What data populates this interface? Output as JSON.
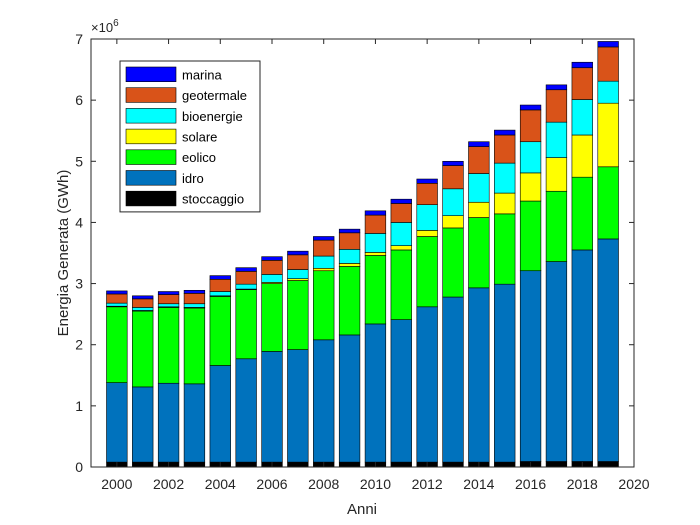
{
  "chart_data": {
    "type": "bar",
    "stacked": true,
    "xlabel": "Anni",
    "ylabel": "Energia Generata (GWh)",
    "exponent_label": "×10",
    "exponent_power": "6",
    "xlim": [
      1999,
      2020
    ],
    "ylim": [
      0,
      7
    ],
    "xticks": [
      "2000",
      "2002",
      "2004",
      "2006",
      "2008",
      "2010",
      "2012",
      "2014",
      "2016",
      "2018",
      "2020"
    ],
    "yticks": [
      "0",
      "1",
      "2",
      "3",
      "4",
      "5",
      "6",
      "7"
    ],
    "x": [
      2000,
      2001,
      2002,
      2003,
      2004,
      2005,
      2006,
      2007,
      2008,
      2009,
      2010,
      2011,
      2012,
      2013,
      2014,
      2015,
      2016,
      2017,
      2018,
      2019
    ],
    "legend_position": "top-left",
    "series": [
      {
        "name": "stoccaggio",
        "color": "#000000",
        "values": [
          0.08,
          0.08,
          0.08,
          0.08,
          0.08,
          0.08,
          0.08,
          0.08,
          0.08,
          0.08,
          0.08,
          0.08,
          0.08,
          0.08,
          0.08,
          0.08,
          0.09,
          0.09,
          0.09,
          0.09
        ]
      },
      {
        "name": "idro",
        "color": "#0072BD",
        "values": [
          1.3,
          1.23,
          1.29,
          1.28,
          1.58,
          1.69,
          1.81,
          1.84,
          2.0,
          2.08,
          2.26,
          2.33,
          2.54,
          2.7,
          2.85,
          2.91,
          3.12,
          3.27,
          3.46,
          3.64
        ]
      },
      {
        "name": "eolico",
        "color": "#00FF00",
        "values": [
          1.24,
          1.24,
          1.24,
          1.24,
          1.13,
          1.13,
          1.11,
          1.13,
          1.13,
          1.12,
          1.12,
          1.14,
          1.15,
          1.13,
          1.15,
          1.15,
          1.14,
          1.15,
          1.19,
          1.18
        ]
      },
      {
        "name": "solare",
        "color": "#FFFF00",
        "values": [
          0.01,
          0.01,
          0.01,
          0.01,
          0.01,
          0.01,
          0.02,
          0.03,
          0.04,
          0.05,
          0.05,
          0.07,
          0.1,
          0.2,
          0.25,
          0.34,
          0.46,
          0.55,
          0.69,
          1.04
        ]
      },
      {
        "name": "bioenergie",
        "color": "#00FFFF",
        "values": [
          0.05,
          0.05,
          0.05,
          0.06,
          0.07,
          0.08,
          0.13,
          0.15,
          0.2,
          0.23,
          0.31,
          0.38,
          0.42,
          0.44,
          0.47,
          0.49,
          0.51,
          0.58,
          0.58,
          0.36
        ]
      },
      {
        "name": "geotermale",
        "color": "#D95319",
        "values": [
          0.15,
          0.14,
          0.15,
          0.17,
          0.2,
          0.21,
          0.23,
          0.24,
          0.26,
          0.27,
          0.3,
          0.31,
          0.35,
          0.38,
          0.44,
          0.46,
          0.52,
          0.53,
          0.52,
          0.56
        ]
      },
      {
        "name": "marina",
        "color": "#0000FF",
        "values": [
          0.05,
          0.05,
          0.05,
          0.05,
          0.06,
          0.06,
          0.06,
          0.06,
          0.06,
          0.06,
          0.07,
          0.07,
          0.07,
          0.07,
          0.08,
          0.08,
          0.08,
          0.08,
          0.09,
          0.09
        ]
      }
    ]
  }
}
